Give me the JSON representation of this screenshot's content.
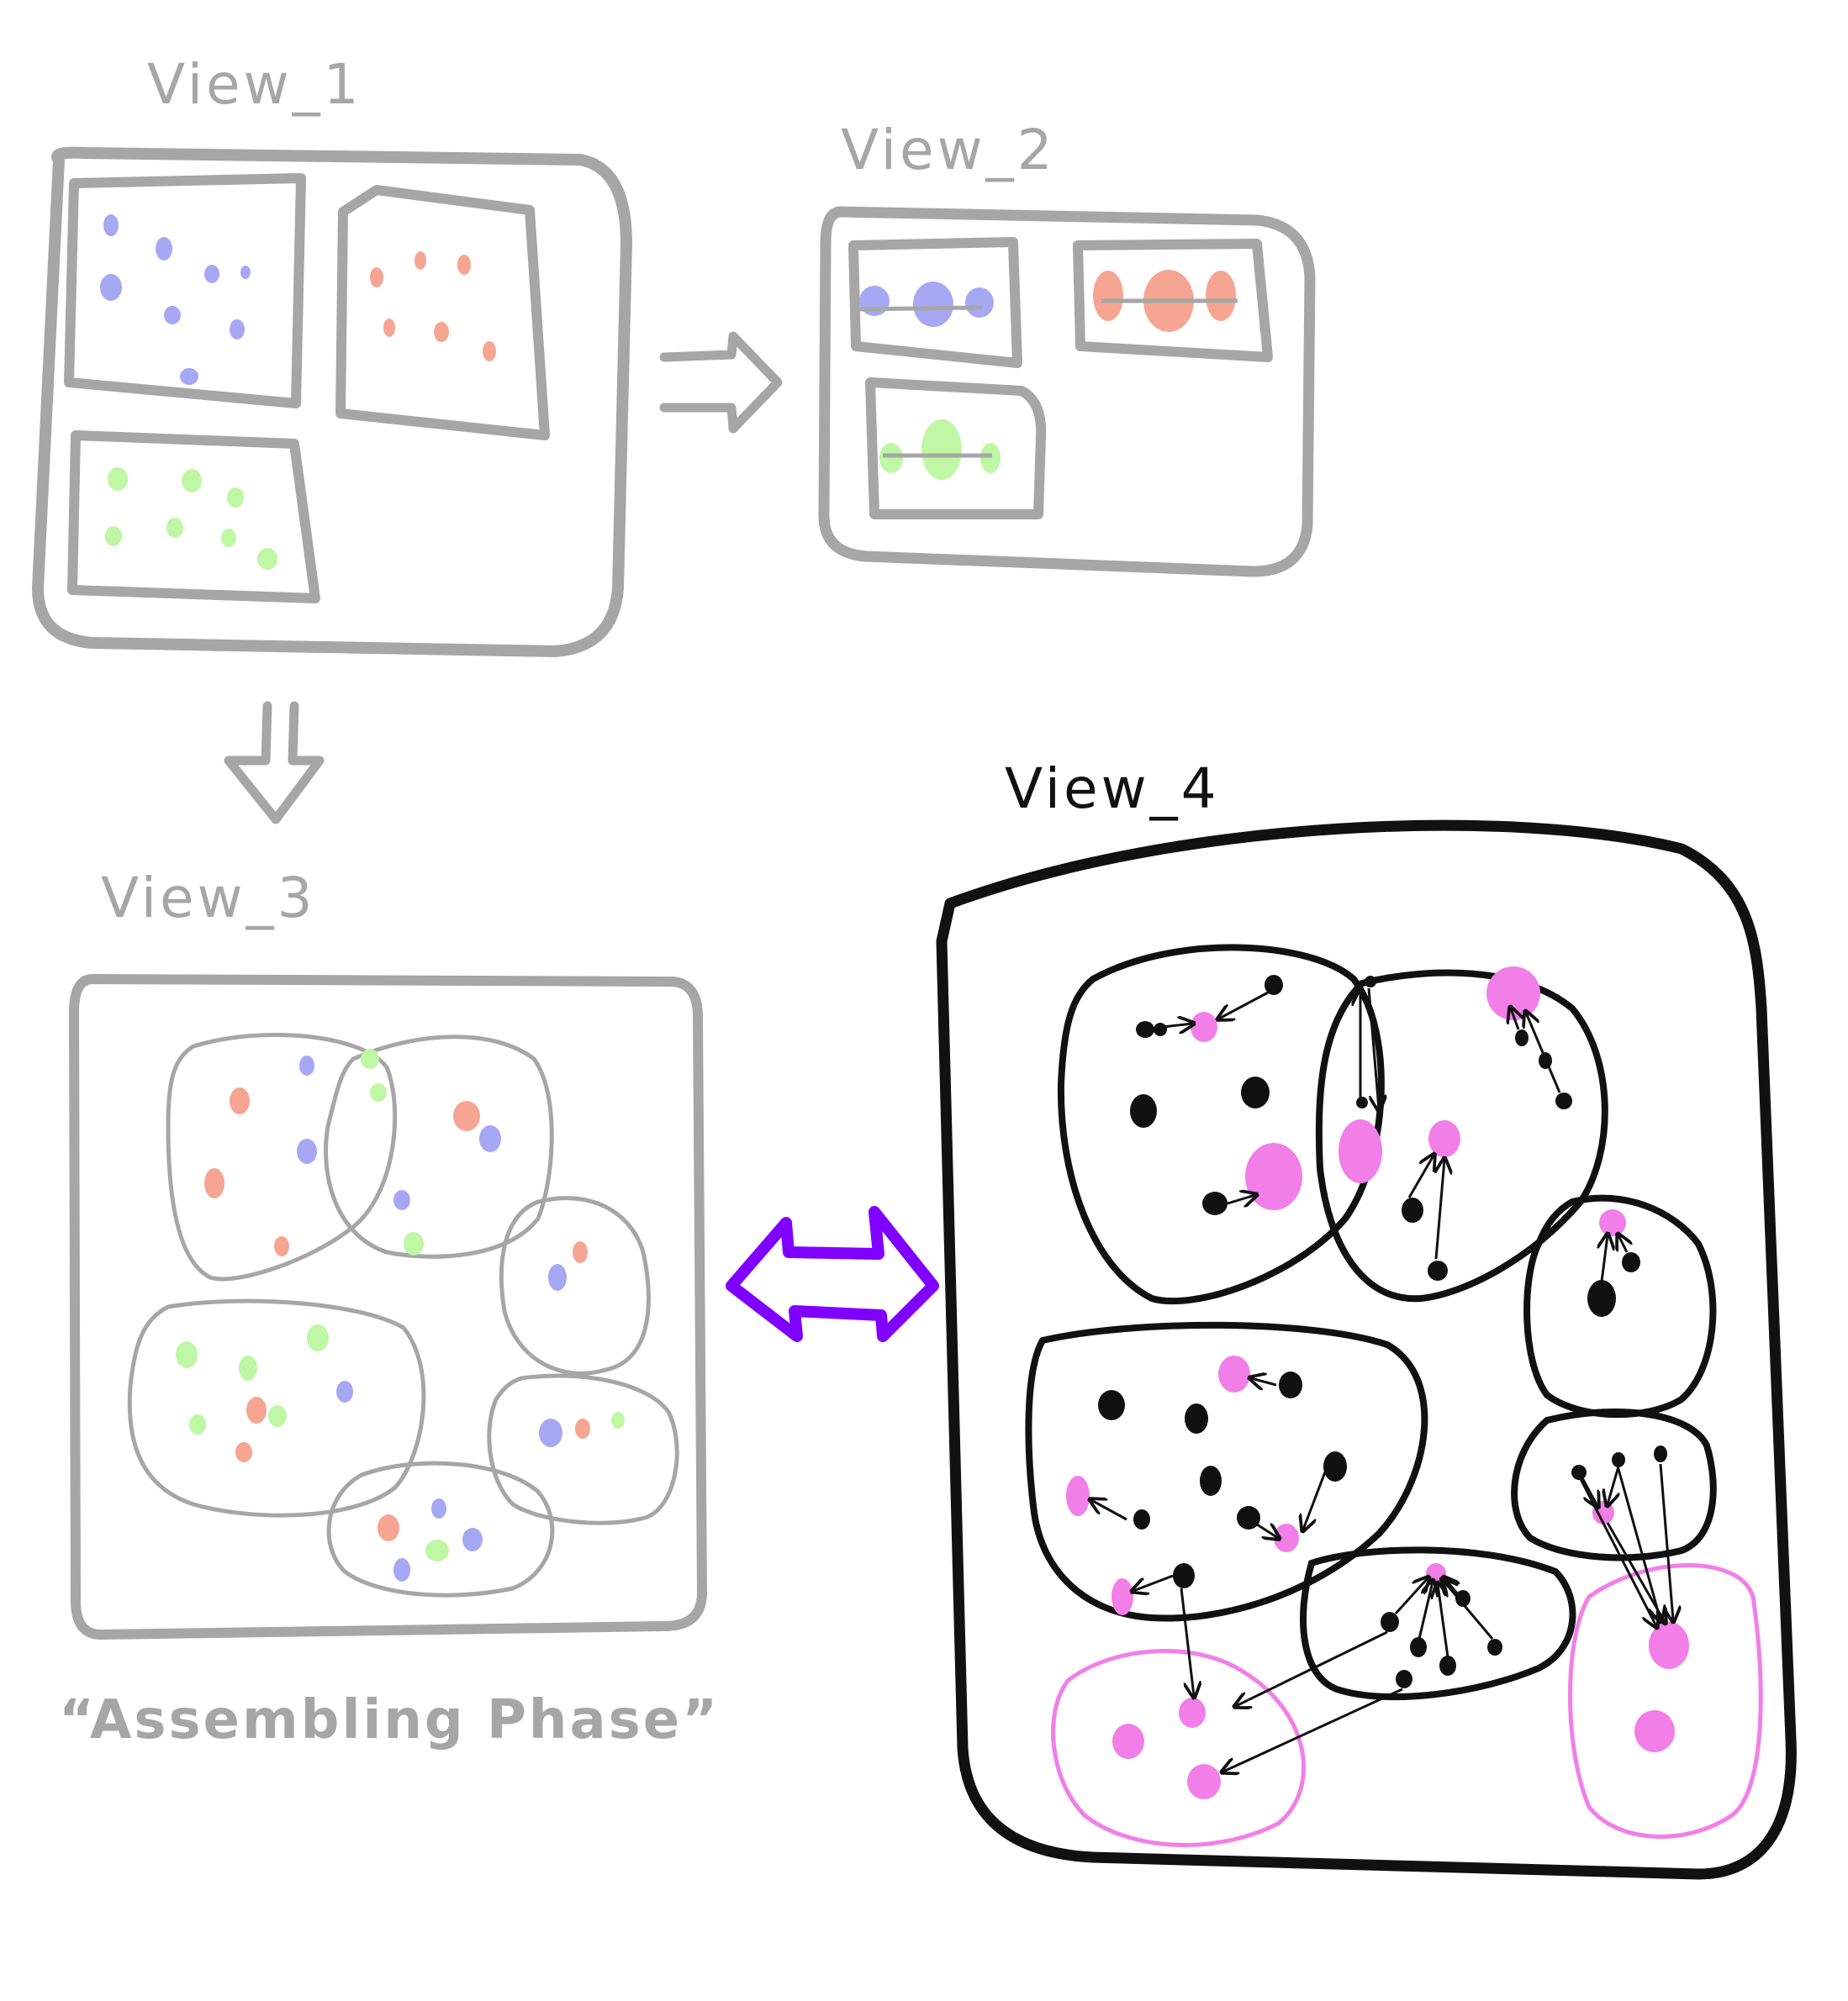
{
  "labels": {
    "view1": "View_1",
    "view2": "View_2",
    "view3": "View_3",
    "view4": "View_4",
    "caption": "“Assembling Phase”"
  },
  "colors": {
    "gray": "#a6a6a6",
    "black": "#111111",
    "blue": "#a6a8f4",
    "red": "#f6a592",
    "green": "#bff7a4",
    "pink": "#f27ee8",
    "purple": "#8000ff"
  }
}
